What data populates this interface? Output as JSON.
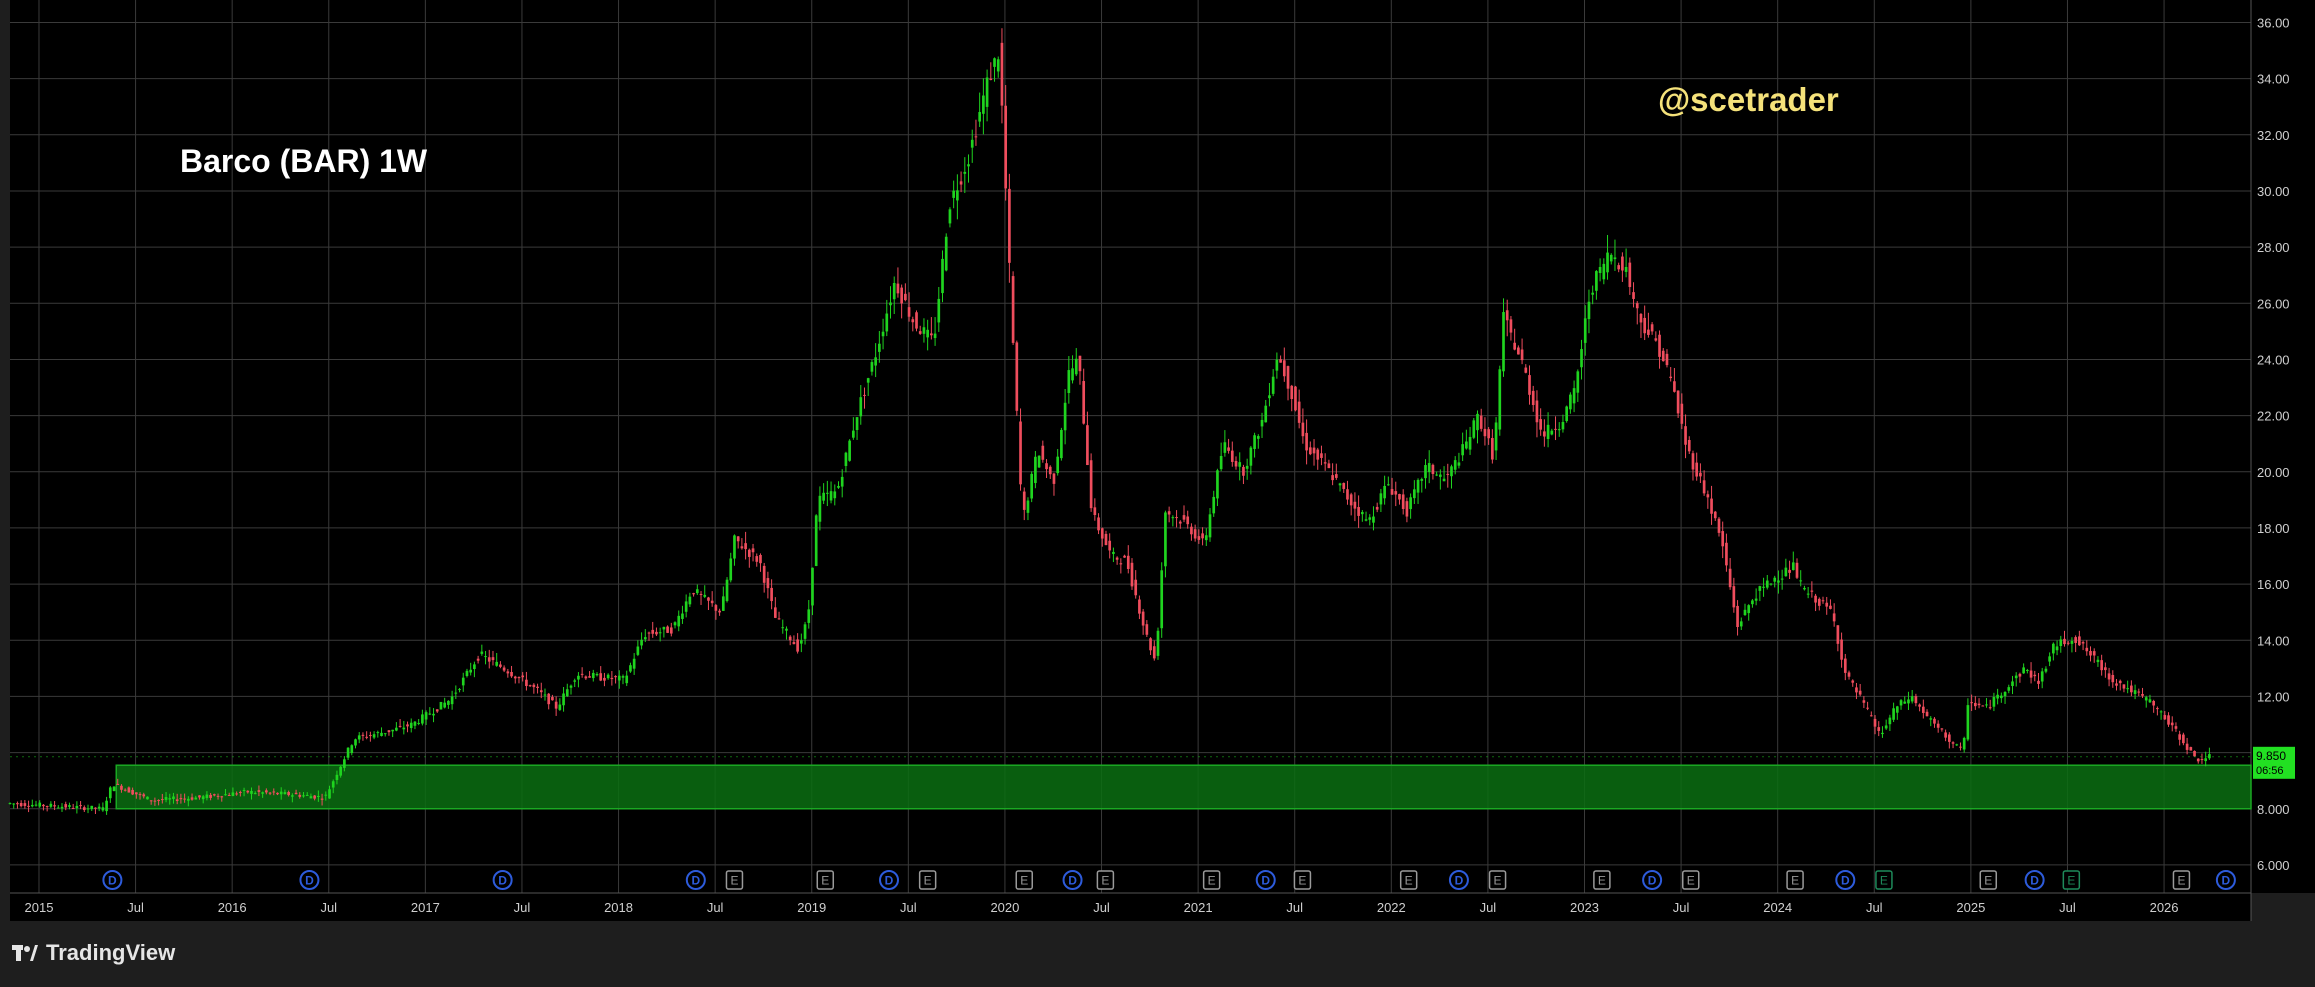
{
  "watermark": "@scetrader",
  "footer": {
    "brand": "TradingView"
  },
  "colors": {
    "background": "#000000",
    "frame": "#1e1e1e",
    "grid": "#3a3a3a",
    "up": "#1fd41f",
    "down": "#ef4d5d",
    "zone_fill": "#0b6e12",
    "zone_border": "#1aa823",
    "price_label_bg": "#22e022",
    "watermark": "#f5e27a",
    "title": "#ffffff",
    "axis_text": "#cfcfcf",
    "dividend_marker": "#2d5bdb",
    "earnings_marker": "#9a9a9a",
    "earnings_marker_future": "#1e8a5a"
  },
  "chart_data": {
    "type": "candlestick",
    "title": "Barco (BAR) 1W",
    "xlabel": "",
    "ylabel": "",
    "xlim": [
      2015.0,
      2026.6
    ],
    "ylim": [
      5.0,
      36.8
    ],
    "grid": true,
    "x_ticks": [
      {
        "label": "2015",
        "x": 2015.15
      },
      {
        "label": "Jul",
        "x": 2015.65
      },
      {
        "label": "2016",
        "x": 2016.15
      },
      {
        "label": "Jul",
        "x": 2016.65
      },
      {
        "label": "2017",
        "x": 2017.15
      },
      {
        "label": "Jul",
        "x": 2017.65
      },
      {
        "label": "2018",
        "x": 2018.15
      },
      {
        "label": "Jul",
        "x": 2018.65
      },
      {
        "label": "2019",
        "x": 2019.15
      },
      {
        "label": "Jul",
        "x": 2019.65
      },
      {
        "label": "2020",
        "x": 2020.15
      },
      {
        "label": "Jul",
        "x": 2020.65
      },
      {
        "label": "2021",
        "x": 2021.15
      },
      {
        "label": "Jul",
        "x": 2021.65
      },
      {
        "label": "2022",
        "x": 2022.15
      },
      {
        "label": "Jul",
        "x": 2022.65
      },
      {
        "label": "2023",
        "x": 2023.15
      },
      {
        "label": "Jul",
        "x": 2023.65
      },
      {
        "label": "2024",
        "x": 2024.15
      },
      {
        "label": "Jul",
        "x": 2024.65
      },
      {
        "label": "2025",
        "x": 2025.15
      },
      {
        "label": "Jul",
        "x": 2025.65
      },
      {
        "label": "2026",
        "x": 2026.15
      }
    ],
    "y_ticks": [
      "6.000",
      "8.000",
      "10.00",
      "12.00",
      "14.00",
      "16.00",
      "18.00",
      "20.00",
      "22.00",
      "24.00",
      "26.00",
      "28.00",
      "30.00",
      "32.00",
      "34.00",
      "36.00"
    ],
    "y_tick_values": [
      6,
      8,
      10,
      12,
      14,
      16,
      18,
      20,
      22,
      24,
      26,
      28,
      30,
      32,
      34,
      36
    ],
    "price_path": [
      [
        2015.0,
        8.2
      ],
      [
        2015.25,
        8.1
      ],
      [
        2015.5,
        8.0
      ],
      [
        2015.55,
        8.9
      ],
      [
        2015.75,
        8.3
      ],
      [
        2016.0,
        8.4
      ],
      [
        2016.25,
        8.6
      ],
      [
        2016.5,
        8.5
      ],
      [
        2016.65,
        8.4
      ],
      [
        2016.72,
        9.4
      ],
      [
        2016.8,
        10.5
      ],
      [
        2017.0,
        10.8
      ],
      [
        2017.1,
        11.0
      ],
      [
        2017.3,
        11.9
      ],
      [
        2017.45,
        13.5
      ],
      [
        2017.6,
        12.9
      ],
      [
        2017.75,
        12.2
      ],
      [
        2017.85,
        11.6
      ],
      [
        2017.95,
        12.8
      ],
      [
        2018.05,
        12.7
      ],
      [
        2018.2,
        12.6
      ],
      [
        2018.3,
        14.2
      ],
      [
        2018.45,
        14.4
      ],
      [
        2018.55,
        15.8
      ],
      [
        2018.7,
        15.0
      ],
      [
        2018.77,
        17.6
      ],
      [
        2018.9,
        16.8
      ],
      [
        2018.98,
        14.8
      ],
      [
        2019.1,
        13.7
      ],
      [
        2019.15,
        14.8
      ],
      [
        2019.2,
        19.0
      ],
      [
        2019.3,
        19.3
      ],
      [
        2019.4,
        22.0
      ],
      [
        2019.5,
        24.2
      ],
      [
        2019.6,
        26.8
      ],
      [
        2019.7,
        25.3
      ],
      [
        2019.8,
        24.6
      ],
      [
        2019.88,
        29.5
      ],
      [
        2019.98,
        31.2
      ],
      [
        2020.08,
        33.9
      ],
      [
        2020.14,
        35.0
      ],
      [
        2020.2,
        26.0
      ],
      [
        2020.26,
        18.2
      ],
      [
        2020.34,
        20.8
      ],
      [
        2020.42,
        19.6
      ],
      [
        2020.5,
        23.5
      ],
      [
        2020.55,
        24.0
      ],
      [
        2020.62,
        18.5
      ],
      [
        2020.72,
        17.0
      ],
      [
        2020.8,
        16.8
      ],
      [
        2020.9,
        14.2
      ],
      [
        2020.95,
        13.2
      ],
      [
        2021.0,
        18.6
      ],
      [
        2021.1,
        18.2
      ],
      [
        2021.2,
        17.4
      ],
      [
        2021.3,
        21.0
      ],
      [
        2021.4,
        20.0
      ],
      [
        2021.5,
        21.8
      ],
      [
        2021.58,
        24.2
      ],
      [
        2021.65,
        22.9
      ],
      [
        2021.72,
        21.0
      ],
      [
        2021.85,
        20.0
      ],
      [
        2021.95,
        19.0
      ],
      [
        2022.05,
        18.2
      ],
      [
        2022.15,
        19.6
      ],
      [
        2022.25,
        18.6
      ],
      [
        2022.35,
        20.2
      ],
      [
        2022.45,
        19.7
      ],
      [
        2022.55,
        20.9
      ],
      [
        2022.62,
        22.0
      ],
      [
        2022.7,
        20.5
      ],
      [
        2022.75,
        25.5
      ],
      [
        2022.85,
        23.8
      ],
      [
        2022.95,
        21.3
      ],
      [
        2023.05,
        21.8
      ],
      [
        2023.12,
        22.9
      ],
      [
        2023.2,
        26.5
      ],
      [
        2023.3,
        27.8
      ],
      [
        2023.38,
        27.3
      ],
      [
        2023.45,
        25.5
      ],
      [
        2023.55,
        24.5
      ],
      [
        2023.62,
        23.2
      ],
      [
        2023.7,
        20.8
      ],
      [
        2023.8,
        19.2
      ],
      [
        2023.88,
        17.5
      ],
      [
        2023.96,
        14.5
      ],
      [
        2024.05,
        15.6
      ],
      [
        2024.15,
        16.2
      ],
      [
        2024.25,
        16.6
      ],
      [
        2024.3,
        15.8
      ],
      [
        2024.38,
        15.4
      ],
      [
        2024.45,
        15.0
      ],
      [
        2024.52,
        12.8
      ],
      [
        2024.6,
        11.9
      ],
      [
        2024.7,
        10.6
      ],
      [
        2024.78,
        11.6
      ],
      [
        2024.86,
        12.0
      ],
      [
        2024.95,
        11.2
      ],
      [
        2025.05,
        10.5
      ],
      [
        2025.13,
        10.0
      ],
      [
        2025.15,
        11.8
      ],
      [
        2025.25,
        11.6
      ],
      [
        2025.35,
        12.3
      ],
      [
        2025.45,
        13.0
      ],
      [
        2025.52,
        12.5
      ],
      [
        2025.6,
        13.8
      ],
      [
        2025.7,
        14.1
      ],
      [
        2025.8,
        13.4
      ],
      [
        2025.9,
        12.6
      ],
      [
        2026.0,
        12.2
      ],
      [
        2026.1,
        11.8
      ],
      [
        2026.2,
        11.0
      ],
      [
        2026.28,
        10.3
      ],
      [
        2026.33,
        9.75
      ],
      [
        2026.4,
        9.85
      ]
    ],
    "support_zone": {
      "x_start": 2015.55,
      "x_end": 2026.6,
      "y_low": 8.0,
      "y_high": 9.55
    },
    "last_price": {
      "label": "9.850",
      "value": 9.85,
      "countdown": "06:56"
    },
    "event_markers": [
      {
        "type": "D",
        "x": 2015.53
      },
      {
        "type": "D",
        "x": 2016.55
      },
      {
        "type": "D",
        "x": 2017.55
      },
      {
        "type": "D",
        "x": 2018.55
      },
      {
        "type": "E",
        "x": 2018.75
      },
      {
        "type": "E",
        "x": 2019.22
      },
      {
        "type": "D",
        "x": 2019.55
      },
      {
        "type": "E",
        "x": 2019.75
      },
      {
        "type": "E",
        "x": 2020.25
      },
      {
        "type": "D",
        "x": 2020.5
      },
      {
        "type": "E",
        "x": 2020.67
      },
      {
        "type": "E",
        "x": 2021.22
      },
      {
        "type": "D",
        "x": 2021.5
      },
      {
        "type": "E",
        "x": 2021.69
      },
      {
        "type": "E",
        "x": 2022.24
      },
      {
        "type": "D",
        "x": 2022.5
      },
      {
        "type": "E",
        "x": 2022.7
      },
      {
        "type": "E",
        "x": 2023.24
      },
      {
        "type": "D",
        "x": 2023.5
      },
      {
        "type": "E",
        "x": 2023.7
      },
      {
        "type": "E",
        "x": 2024.24
      },
      {
        "type": "D",
        "x": 2024.5
      },
      {
        "type": "E",
        "x": 2024.7,
        "future": true
      },
      {
        "type": "E",
        "x": 2025.24
      },
      {
        "type": "D",
        "x": 2025.48
      },
      {
        "type": "E",
        "x": 2025.67,
        "future": true
      },
      {
        "type": "E",
        "x": 2026.24
      },
      {
        "type": "D",
        "x": 2026.47
      }
    ]
  }
}
